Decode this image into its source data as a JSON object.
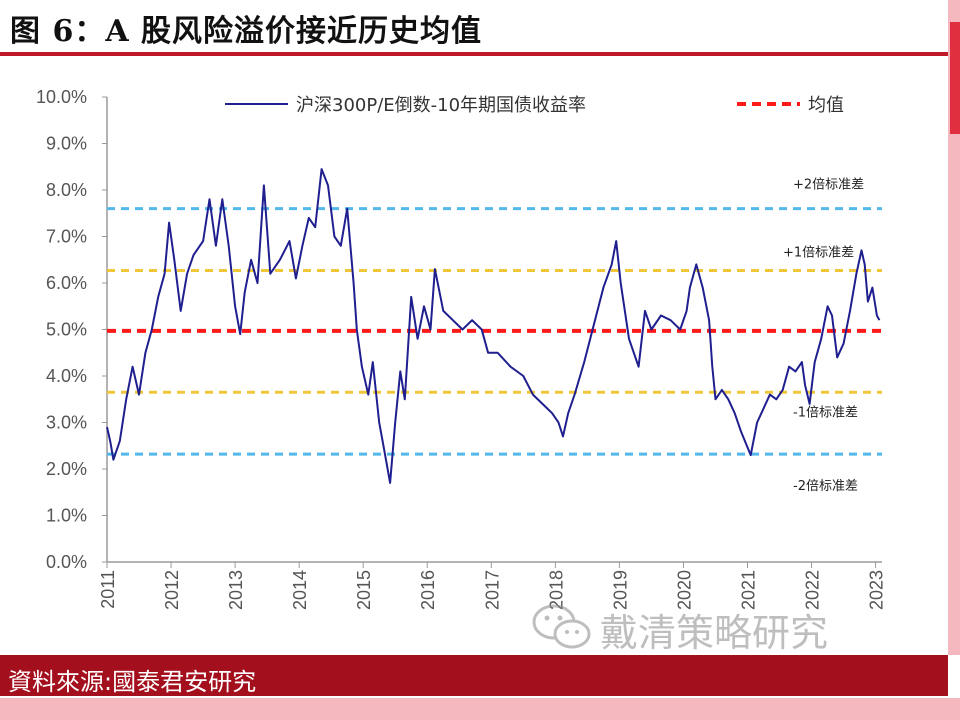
{
  "title": "图 6：A 股风险溢价接近历史均值",
  "source": "資料來源:國泰君安研究",
  "watermark": "戴清策略研究",
  "chart_data": {
    "type": "line",
    "ylim": [
      0,
      10
    ],
    "xlim": [
      2011,
      2023.1
    ],
    "yticks": [
      "0.0%",
      "1.0%",
      "2.0%",
      "3.0%",
      "4.0%",
      "5.0%",
      "6.0%",
      "7.0%",
      "8.0%",
      "9.0%",
      "10.0%"
    ],
    "xticks": [
      "2011",
      "2012",
      "2013",
      "2014",
      "2015",
      "2016",
      "2017",
      "2018",
      "2019",
      "2020",
      "2021",
      "2022",
      "2023"
    ],
    "legend": [
      {
        "label": "沪深300P/E倒数-10年期国债收益率",
        "color": "#1f1f8f",
        "style": "solid"
      },
      {
        "label": "均值",
        "color": "#ff1a1a",
        "style": "dashed"
      }
    ],
    "reference_lines": [
      {
        "label": "+2倍标准差",
        "value": 7.6,
        "color": "#55b8ea"
      },
      {
        "label": "+1倍标准差",
        "value": 6.27,
        "color": "#f0c73a"
      },
      {
        "label": "均值",
        "value": 4.97,
        "color": "#ff1a1a"
      },
      {
        "label": "-1倍标准差",
        "value": 3.65,
        "color": "#f0c73a"
      },
      {
        "label": "-2倍标准差",
        "value": 2.32,
        "color": "#55b8ea"
      }
    ],
    "series": [
      {
        "name": "沪深300P/E倒数-10年期国债收益率",
        "color": "#1f1f8f",
        "points": [
          [
            2011.0,
            2.9
          ],
          [
            2011.05,
            2.6
          ],
          [
            2011.1,
            2.2
          ],
          [
            2011.2,
            2.6
          ],
          [
            2011.3,
            3.5
          ],
          [
            2011.4,
            4.2
          ],
          [
            2011.5,
            3.6
          ],
          [
            2011.6,
            4.5
          ],
          [
            2011.7,
            5.0
          ],
          [
            2011.8,
            5.7
          ],
          [
            2011.9,
            6.2
          ],
          [
            2011.97,
            7.3
          ],
          [
            2012.05,
            6.5
          ],
          [
            2012.15,
            5.4
          ],
          [
            2012.25,
            6.2
          ],
          [
            2012.35,
            6.6
          ],
          [
            2012.5,
            6.9
          ],
          [
            2012.6,
            7.8
          ],
          [
            2012.7,
            6.8
          ],
          [
            2012.8,
            7.8
          ],
          [
            2012.9,
            6.8
          ],
          [
            2013.0,
            5.5
          ],
          [
            2013.08,
            4.9
          ],
          [
            2013.15,
            5.8
          ],
          [
            2013.25,
            6.5
          ],
          [
            2013.35,
            6.0
          ],
          [
            2013.45,
            8.1
          ],
          [
            2013.55,
            6.2
          ],
          [
            2013.7,
            6.5
          ],
          [
            2013.85,
            6.9
          ],
          [
            2013.95,
            6.1
          ],
          [
            2014.05,
            6.8
          ],
          [
            2014.15,
            7.4
          ],
          [
            2014.25,
            7.2
          ],
          [
            2014.35,
            8.45
          ],
          [
            2014.45,
            8.1
          ],
          [
            2014.55,
            7.0
          ],
          [
            2014.65,
            6.8
          ],
          [
            2014.75,
            7.6
          ],
          [
            2014.85,
            6.0
          ],
          [
            2014.9,
            5.0
          ],
          [
            2014.98,
            4.2
          ],
          [
            2015.08,
            3.6
          ],
          [
            2015.15,
            4.3
          ],
          [
            2015.25,
            3.0
          ],
          [
            2015.33,
            2.4
          ],
          [
            2015.42,
            1.7
          ],
          [
            2015.5,
            3.0
          ],
          [
            2015.58,
            4.1
          ],
          [
            2015.65,
            3.5
          ],
          [
            2015.75,
            5.7
          ],
          [
            2015.85,
            4.8
          ],
          [
            2015.95,
            5.5
          ],
          [
            2016.05,
            5.0
          ],
          [
            2016.12,
            6.3
          ],
          [
            2016.25,
            5.4
          ],
          [
            2016.4,
            5.2
          ],
          [
            2016.55,
            5.0
          ],
          [
            2016.7,
            5.2
          ],
          [
            2016.85,
            5.0
          ],
          [
            2016.95,
            4.5
          ],
          [
            2017.1,
            4.5
          ],
          [
            2017.3,
            4.2
          ],
          [
            2017.5,
            4.0
          ],
          [
            2017.65,
            3.6
          ],
          [
            2017.8,
            3.4
          ],
          [
            2017.95,
            3.2
          ],
          [
            2018.05,
            3.0
          ],
          [
            2018.12,
            2.7
          ],
          [
            2018.2,
            3.2
          ],
          [
            2018.3,
            3.6
          ],
          [
            2018.45,
            4.3
          ],
          [
            2018.6,
            5.1
          ],
          [
            2018.75,
            5.9
          ],
          [
            2018.88,
            6.4
          ],
          [
            2018.95,
            6.9
          ],
          [
            2019.02,
            6.0
          ],
          [
            2019.15,
            4.8
          ],
          [
            2019.3,
            4.2
          ],
          [
            2019.4,
            5.4
          ],
          [
            2019.5,
            5.0
          ],
          [
            2019.65,
            5.3
          ],
          [
            2019.8,
            5.2
          ],
          [
            2019.95,
            5.0
          ],
          [
            2020.05,
            5.4
          ],
          [
            2020.1,
            5.9
          ],
          [
            2020.2,
            6.4
          ],
          [
            2020.3,
            5.9
          ],
          [
            2020.4,
            5.2
          ],
          [
            2020.45,
            4.2
          ],
          [
            2020.5,
            3.5
          ],
          [
            2020.6,
            3.7
          ],
          [
            2020.7,
            3.5
          ],
          [
            2020.8,
            3.2
          ],
          [
            2020.9,
            2.8
          ],
          [
            2021.05,
            2.3
          ],
          [
            2021.15,
            3.0
          ],
          [
            2021.25,
            3.3
          ],
          [
            2021.35,
            3.6
          ],
          [
            2021.45,
            3.5
          ],
          [
            2021.55,
            3.7
          ],
          [
            2021.65,
            4.2
          ],
          [
            2021.75,
            4.1
          ],
          [
            2021.85,
            4.3
          ],
          [
            2021.9,
            3.8
          ],
          [
            2021.97,
            3.4
          ],
          [
            2022.05,
            4.3
          ],
          [
            2022.15,
            4.8
          ],
          [
            2022.25,
            5.5
          ],
          [
            2022.32,
            5.3
          ],
          [
            2022.4,
            4.4
          ],
          [
            2022.5,
            4.7
          ],
          [
            2022.6,
            5.4
          ],
          [
            2022.7,
            6.2
          ],
          [
            2022.78,
            6.7
          ],
          [
            2022.83,
            6.4
          ],
          [
            2022.88,
            5.6
          ],
          [
            2022.95,
            5.9
          ],
          [
            2023.02,
            5.3
          ],
          [
            2023.06,
            5.2
          ]
        ]
      }
    ]
  }
}
